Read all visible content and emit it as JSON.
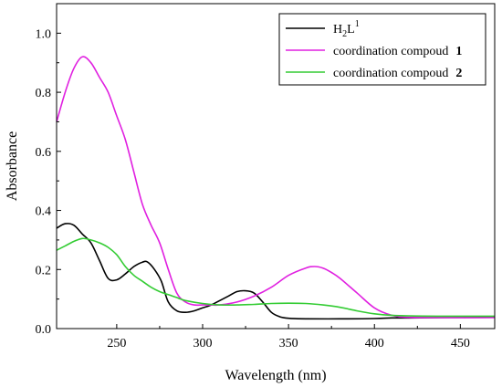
{
  "chart_data": {
    "type": "line",
    "xlabel": "Wavelength (nm)",
    "ylabel": "Absorbance",
    "xlim": [
      215,
      470
    ],
    "ylim": [
      0,
      1.1
    ],
    "x_ticks": [
      "250",
      "300",
      "350",
      "400",
      "450"
    ],
    "y_ticks": [
      "0.0",
      "0.2",
      "0.4",
      "0.6",
      "0.8",
      "1.0"
    ],
    "legend_position": "top-right",
    "grid": false,
    "series": [
      {
        "name": "H2L1",
        "legend_base": "H",
        "legend_sub": "2",
        "legend_mid": "L",
        "legend_sup": "1",
        "color": "#000000",
        "x": [
          215,
          220,
          225,
          230,
          235,
          240,
          245,
          250,
          255,
          260,
          265,
          268,
          272,
          276,
          280,
          285,
          290,
          295,
          300,
          305,
          310,
          315,
          320,
          325,
          330,
          335,
          340,
          345,
          350,
          360,
          380,
          400,
          410,
          420,
          440,
          470
        ],
        "y": [
          0.34,
          0.355,
          0.35,
          0.32,
          0.29,
          0.23,
          0.17,
          0.165,
          0.185,
          0.21,
          0.225,
          0.225,
          0.2,
          0.16,
          0.09,
          0.06,
          0.055,
          0.06,
          0.07,
          0.08,
          0.095,
          0.11,
          0.125,
          0.128,
          0.12,
          0.09,
          0.055,
          0.04,
          0.035,
          0.033,
          0.033,
          0.034,
          0.036,
          0.036,
          0.037,
          0.038
        ]
      },
      {
        "name": "coordination compoud 1",
        "legend_base": "coordination compoud",
        "legend_bold": "1",
        "color": "#e020e0",
        "x": [
          215,
          220,
          225,
          230,
          235,
          240,
          245,
          250,
          255,
          260,
          265,
          270,
          275,
          280,
          285,
          290,
          295,
          300,
          305,
          310,
          320,
          330,
          340,
          350,
          360,
          365,
          370,
          375,
          380,
          390,
          400,
          410,
          420,
          440,
          470
        ],
        "y": [
          0.7,
          0.8,
          0.88,
          0.92,
          0.9,
          0.85,
          0.8,
          0.72,
          0.64,
          0.53,
          0.42,
          0.35,
          0.29,
          0.2,
          0.12,
          0.09,
          0.08,
          0.08,
          0.08,
          0.08,
          0.09,
          0.11,
          0.14,
          0.18,
          0.205,
          0.21,
          0.205,
          0.19,
          0.17,
          0.12,
          0.07,
          0.045,
          0.038,
          0.037,
          0.037
        ]
      },
      {
        "name": "coordination compoud 2",
        "legend_base": "coordination compoud",
        "legend_bold": "2",
        "color": "#33cc33",
        "x": [
          215,
          220,
          225,
          230,
          235,
          240,
          245,
          250,
          255,
          260,
          265,
          270,
          275,
          280,
          285,
          290,
          300,
          310,
          320,
          330,
          340,
          350,
          360,
          370,
          380,
          390,
          400,
          410,
          420,
          440,
          470
        ],
        "y": [
          0.265,
          0.28,
          0.295,
          0.305,
          0.3,
          0.29,
          0.275,
          0.25,
          0.21,
          0.18,
          0.16,
          0.14,
          0.125,
          0.115,
          0.105,
          0.095,
          0.085,
          0.08,
          0.08,
          0.082,
          0.085,
          0.086,
          0.085,
          0.08,
          0.072,
          0.06,
          0.05,
          0.045,
          0.043,
          0.042,
          0.042
        ]
      }
    ]
  }
}
